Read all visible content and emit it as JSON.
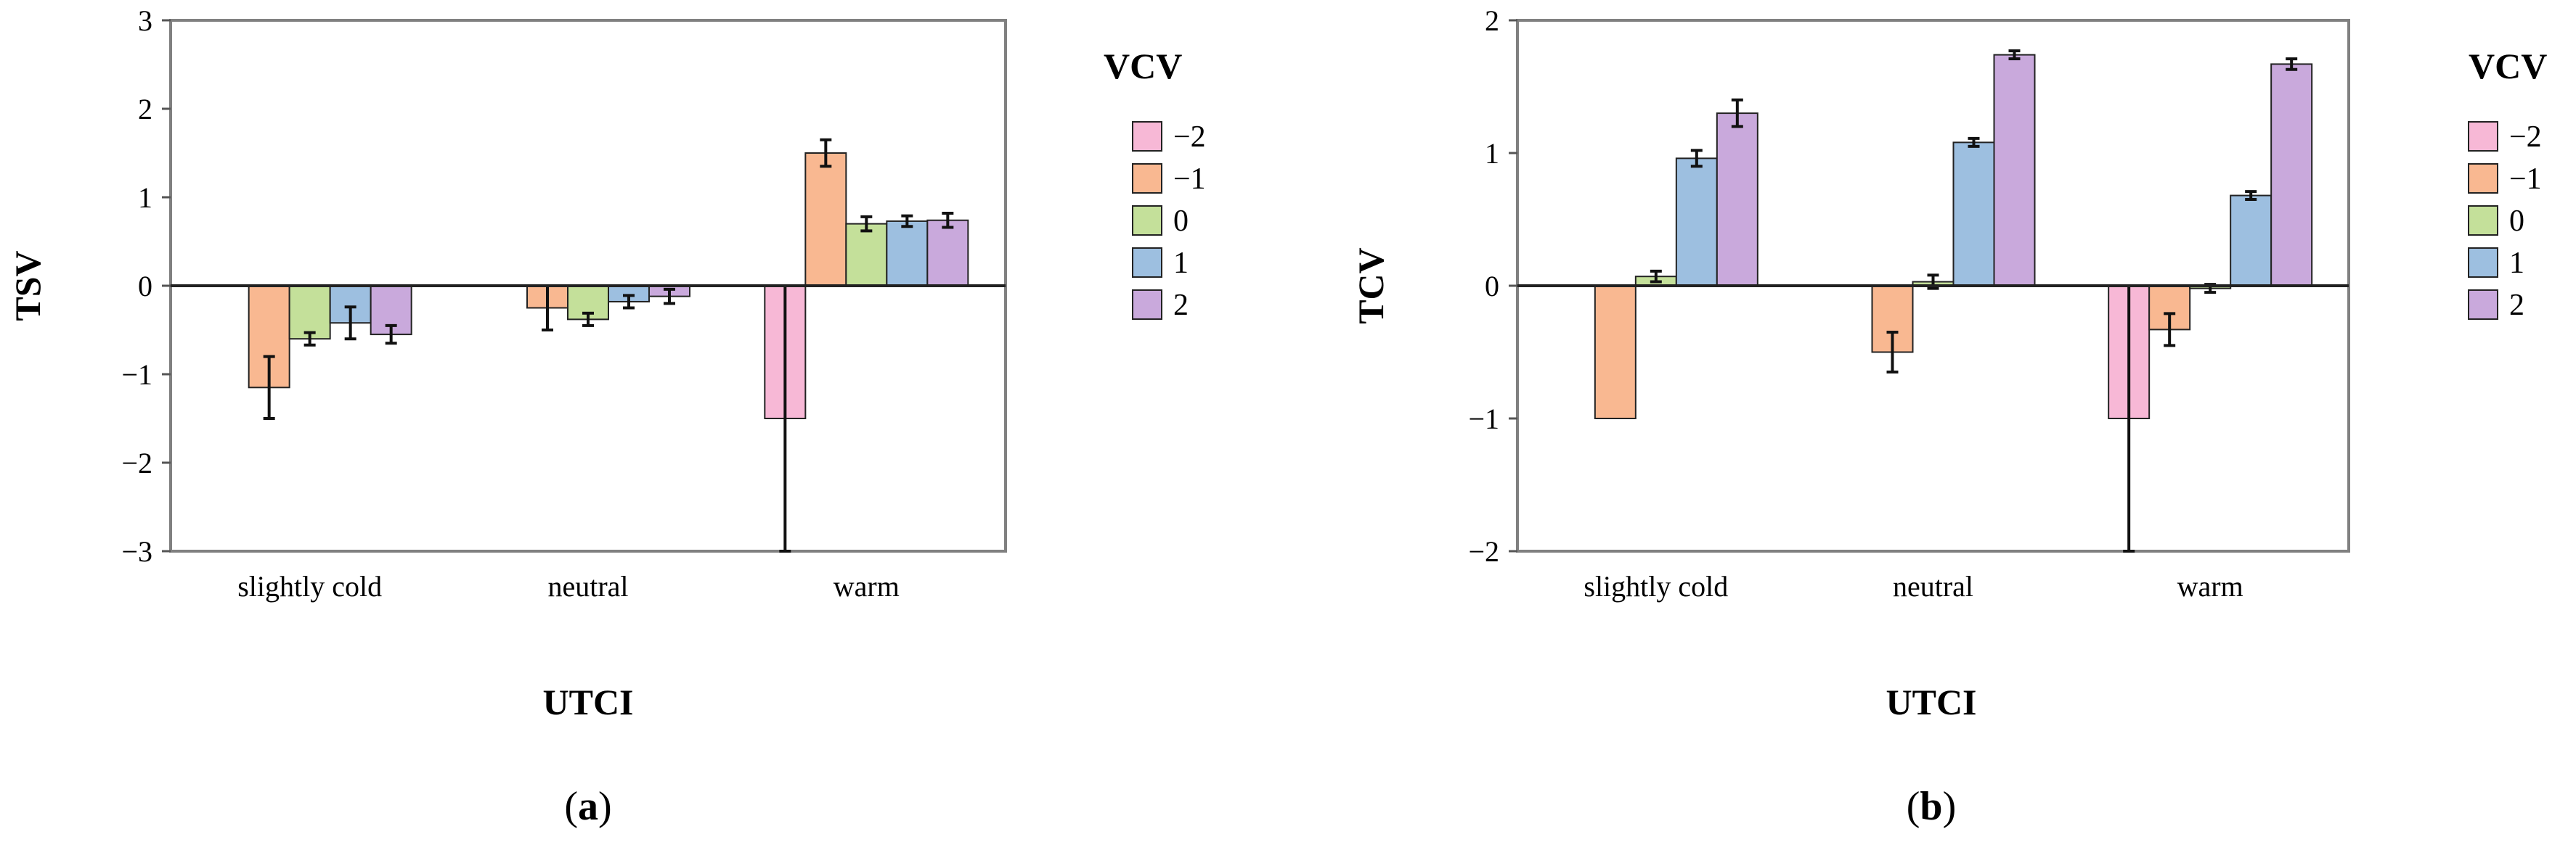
{
  "colors": {
    "-2": "#f7b8d6",
    "-1": "#f9b891",
    "0": "#c4e09a",
    "1": "#9dbfe0",
    "2": "#c9a9dc",
    "frame": "#808080",
    "plot_bg": "#ffffff"
  },
  "chart_data": [
    {
      "type": "bar",
      "caption_pre": "(",
      "caption_letter": "a",
      "caption_post": ")",
      "xlabel": "UTCI",
      "ylabel": "TSV",
      "ylim": [
        -3,
        3
      ],
      "yticks": [
        "−3",
        "−2",
        "−1",
        "0",
        "1",
        "2",
        "3"
      ],
      "ytick_values": [
        -3,
        -2,
        -1,
        0,
        1,
        2,
        3
      ],
      "categories": [
        "slightly cold",
        "neutral",
        "warm"
      ],
      "legend_title": "VCV",
      "series": [
        {
          "name": "−2",
          "key": "-2",
          "values": [
            null,
            null,
            -1.5
          ],
          "err": [
            null,
            null,
            1.5
          ]
        },
        {
          "name": "−1",
          "key": "-1",
          "values": [
            -1.15,
            -0.25,
            1.5
          ],
          "err": [
            0.35,
            0.25,
            0.15
          ]
        },
        {
          "name": "0",
          "key": "0",
          "values": [
            -0.6,
            -0.38,
            0.7
          ],
          "err": [
            0.07,
            0.07,
            0.08
          ]
        },
        {
          "name": "1",
          "key": "1",
          "values": [
            -0.42,
            -0.18,
            0.73
          ],
          "err": [
            0.18,
            0.07,
            0.06
          ]
        },
        {
          "name": "2",
          "key": "2",
          "values": [
            -0.55,
            -0.12,
            0.74
          ],
          "err": [
            0.1,
            0.08,
            0.08
          ]
        }
      ]
    },
    {
      "type": "bar",
      "caption_pre": "(",
      "caption_letter": "b",
      "caption_post": ")",
      "xlabel": "UTCI",
      "ylabel": "TCV",
      "ylim": [
        -2,
        2
      ],
      "yticks": [
        "−2",
        "−1",
        "0",
        "1",
        "2"
      ],
      "ytick_values": [
        -2,
        -1,
        0,
        1,
        2
      ],
      "categories": [
        "slightly cold",
        "neutral",
        "warm"
      ],
      "legend_title": "VCV",
      "series": [
        {
          "name": "−2",
          "key": "-2",
          "values": [
            null,
            null,
            -1.0
          ],
          "err": [
            null,
            null,
            1.0
          ]
        },
        {
          "name": "−1",
          "key": "-1",
          "values": [
            -1.0,
            -0.5,
            -0.33
          ],
          "err": [
            0.0,
            0.15,
            0.12
          ]
        },
        {
          "name": "0",
          "key": "0",
          "values": [
            0.07,
            0.03,
            -0.02
          ],
          "err": [
            0.04,
            0.05,
            0.03
          ]
        },
        {
          "name": "1",
          "key": "1",
          "values": [
            0.96,
            1.08,
            0.68
          ],
          "err": [
            0.06,
            0.03,
            0.03
          ]
        },
        {
          "name": "2",
          "key": "2",
          "values": [
            1.3,
            1.74,
            1.67
          ],
          "err": [
            0.1,
            0.03,
            0.04
          ]
        }
      ]
    }
  ]
}
